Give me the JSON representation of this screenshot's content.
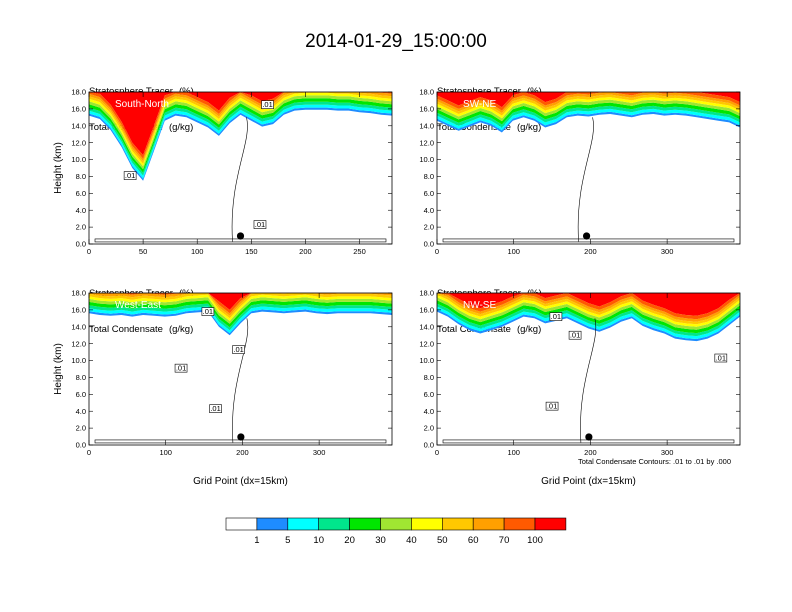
{
  "title": "2014-01-29_15:00:00",
  "colors": [
    "#ffffff",
    "#1e8cff",
    "#00ffff",
    "#00e68c",
    "#00e600",
    "#a0e632",
    "#ffff00",
    "#ffc800",
    "#ffa000",
    "#ff5a00",
    "#ff0000"
  ],
  "colorbar_labels": [
    "1",
    "5",
    "10",
    "20",
    "30",
    "40",
    "50",
    "60",
    "70",
    "100"
  ],
  "contour_note": "Total Condensate Contours: .01 to .01 by .000",
  "chart_data": [
    {
      "type": "heatmap",
      "name": "South-North",
      "line1": "Stratosphere Tracer",
      "unit1": "(%)",
      "line2": "Total Condensate",
      "unit2": "(g/kg)",
      "ylabel": "Height (km)",
      "xlabel": "",
      "xlim": [
        0,
        280
      ],
      "ylim": [
        0,
        18
      ],
      "xticks": [
        "0",
        "50",
        "100",
        "150",
        "200",
        "250"
      ],
      "xtick_values": [
        0,
        50,
        100,
        150,
        200,
        250
      ],
      "yticks": [
        "0.0",
        "2.0",
        "4.0",
        "6.0",
        "8.0",
        "10.0",
        "12.0",
        "14.0",
        "16.0",
        "18.0"
      ],
      "tracer_base_km": [
        15.2,
        14.8,
        13.5,
        11.5,
        9.0,
        7.5,
        11.0,
        14.6,
        15.2,
        15.0,
        14.4,
        13.8,
        12.8,
        14.3,
        15.3,
        14.6,
        13.9,
        14.2,
        15.3,
        15.8,
        15.9,
        15.9,
        15.9,
        15.8,
        15.8,
        15.6,
        15.5,
        15.3,
        15.2
      ],
      "marker_x": 140,
      "contour_labels": [
        {
          "x": 38,
          "y": 8.1,
          "text": ".01"
        },
        {
          "x": 165,
          "y": 16.5,
          "text": ".01"
        },
        {
          "x": 158,
          "y": 2.3,
          "text": ".01"
        }
      ]
    },
    {
      "type": "heatmap",
      "name": "SW-NE",
      "line1": "Stratosphere Tracer",
      "unit1": "(%)",
      "line2": "Total Condensate",
      "unit2": "(g/kg)",
      "ylabel": "",
      "xlabel": "",
      "xlim": [
        0,
        395
      ],
      "ylim": [
        0,
        18
      ],
      "xticks": [
        "0",
        "100",
        "200",
        "300"
      ],
      "xtick_values": [
        0,
        100,
        200,
        300
      ],
      "yticks": [
        "0.0",
        "2.0",
        "4.0",
        "6.0",
        "8.0",
        "10.0",
        "12.0",
        "14.0",
        "16.0",
        "18.0"
      ],
      "tracer_base_km": [
        14.6,
        14.0,
        13.4,
        13.9,
        14.4,
        14.0,
        13.2,
        14.6,
        15.0,
        14.6,
        13.8,
        14.2,
        15.0,
        15.2,
        15.1,
        15.3,
        15.4,
        15.2,
        15.0,
        15.3,
        15.4,
        15.2,
        15.3,
        15.2,
        15.0,
        14.8,
        14.6,
        14.4,
        13.8
      ],
      "marker_x": 195,
      "contour_labels": []
    },
    {
      "type": "heatmap",
      "name": "West-East",
      "line1": "Stratosphere Tracer",
      "unit1": "(%)",
      "line2": "Total Condensate",
      "unit2": "(g/kg)",
      "ylabel": "Height (km)",
      "xlabel": "Grid Point (dx=15km)",
      "xlim": [
        0,
        395
      ],
      "ylim": [
        0,
        18
      ],
      "xticks": [
        "0",
        "100",
        "200",
        "300"
      ],
      "xtick_values": [
        0,
        100,
        200,
        300
      ],
      "yticks": [
        "0.0",
        "2.0",
        "4.0",
        "6.0",
        "8.0",
        "10.0",
        "12.0",
        "14.0",
        "16.0",
        "18.0"
      ],
      "tracer_base_km": [
        15.6,
        15.4,
        15.3,
        15.4,
        15.2,
        15.4,
        15.3,
        15.2,
        15.3,
        15.6,
        15.7,
        15.8,
        14.0,
        13.0,
        14.4,
        15.6,
        15.8,
        15.7,
        15.6,
        15.7,
        15.8,
        15.6,
        15.5,
        15.6,
        15.6,
        15.6,
        15.6,
        15.5,
        15.4
      ],
      "marker_x": 198,
      "contour_labels": [
        {
          "x": 155,
          "y": 15.8,
          "text": ".01"
        },
        {
          "x": 195,
          "y": 11.3,
          "text": ".01"
        },
        {
          "x": 120,
          "y": 9.1,
          "text": ".01"
        },
        {
          "x": 165,
          "y": 4.3,
          "text": ".01"
        }
      ]
    },
    {
      "type": "heatmap",
      "name": "NW-SE",
      "line1": "Stratosphere Tracer",
      "unit1": "(%)",
      "line2": "Total Condensate",
      "unit2": "(g/kg)",
      "ylabel": "",
      "xlabel": "Grid Point (dx=15km)",
      "xlim": [
        0,
        395
      ],
      "ylim": [
        0,
        18
      ],
      "xticks": [
        "0",
        "100",
        "200",
        "300"
      ],
      "xtick_values": [
        0,
        100,
        200,
        300
      ],
      "yticks": [
        "0.0",
        "2.0",
        "4.0",
        "6.0",
        "8.0",
        "10.0",
        "12.0",
        "14.0",
        "16.0",
        "18.0"
      ],
      "tracer_base_km": [
        15.8,
        15.2,
        14.3,
        13.6,
        13.2,
        13.6,
        14.0,
        14.6,
        15.2,
        15.0,
        14.4,
        14.7,
        15.0,
        14.4,
        13.8,
        13.4,
        13.9,
        14.6,
        15.0,
        14.1,
        13.6,
        13.2,
        12.6,
        12.4,
        12.3,
        12.6,
        13.2,
        14.2,
        15.2
      ],
      "marker_x": 198,
      "contour_labels": [
        {
          "x": 155,
          "y": 15.2,
          "text": ".01"
        },
        {
          "x": 180,
          "y": 13.0,
          "text": ".01"
        },
        {
          "x": 150,
          "y": 4.6,
          "text": ".01"
        },
        {
          "x": 370,
          "y": 10.3,
          "text": ".01"
        }
      ]
    }
  ]
}
